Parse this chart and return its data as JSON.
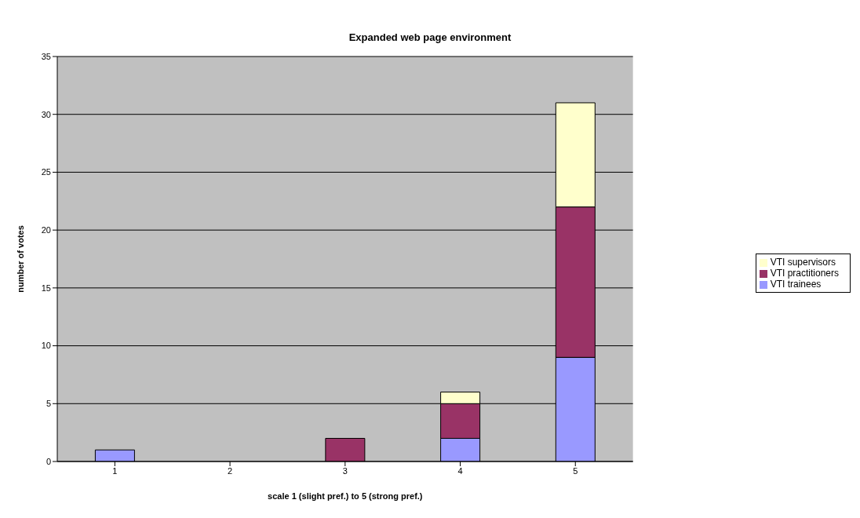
{
  "chart_data": {
    "type": "bar",
    "title": "Expanded web page environment",
    "xlabel": "scale 1 (slight pref.) to 5 (strong pref.)",
    "ylabel": "number of votes",
    "categories": [
      "1",
      "2",
      "3",
      "4",
      "5"
    ],
    "stacked": true,
    "series": [
      {
        "name": "VTI trainees",
        "color": "#9999ff",
        "values": [
          1,
          0,
          0,
          2,
          9
        ]
      },
      {
        "name": "VTI practitioners",
        "color": "#993366",
        "values": [
          0,
          0,
          2,
          3,
          13
        ]
      },
      {
        "name": "VTI supervisors",
        "color": "#ffffcc",
        "values": [
          0,
          0,
          0,
          1,
          9
        ]
      }
    ],
    "ylim": [
      0,
      35
    ],
    "yticks": [
      0,
      5,
      10,
      15,
      20,
      25,
      30,
      35
    ],
    "grid": "y",
    "legend": "right"
  }
}
